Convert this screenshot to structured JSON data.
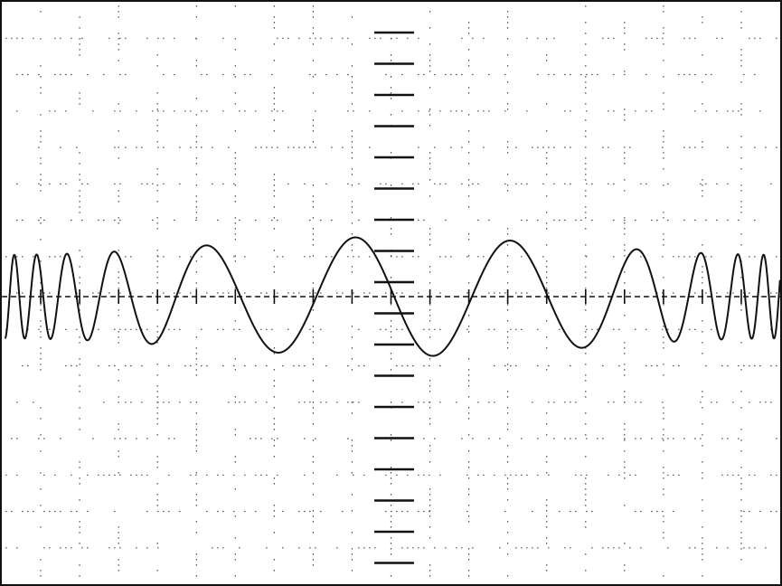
{
  "screen": {
    "background": "#ffffff",
    "ink": "#111111",
    "grid_color": "#555555"
  },
  "grid": {
    "horizontal_divisions": 10,
    "vertical_divisions": 8,
    "center_axis": "dashed",
    "axis_ticks": 20
  },
  "waveform": {
    "type": "chirp",
    "description_shape": "sinusoid whose frequency rises toward both edges (symmetric chirp)",
    "center_frequency_cycles_per_screen": 2.5,
    "edge_frequency_cycles_per_screen": 22,
    "amplitude_divisions": 1.0
  }
}
